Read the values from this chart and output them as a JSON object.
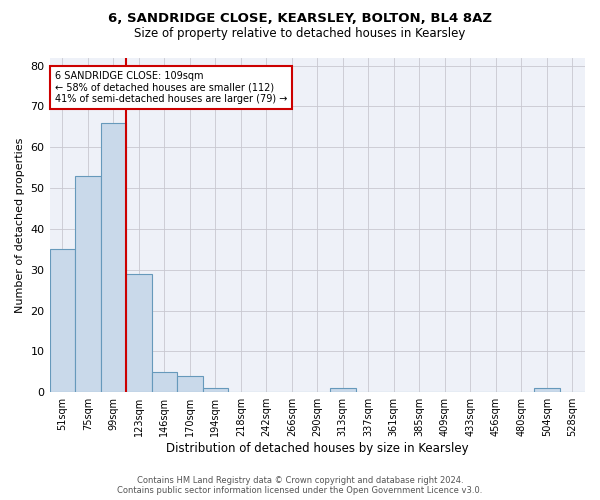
{
  "title1": "6, SANDRIDGE CLOSE, KEARSLEY, BOLTON, BL4 8AZ",
  "title2": "Size of property relative to detached houses in Kearsley",
  "xlabel": "Distribution of detached houses by size in Kearsley",
  "ylabel": "Number of detached properties",
  "footer1": "Contains HM Land Registry data © Crown copyright and database right 2024.",
  "footer2": "Contains public sector information licensed under the Open Government Licence v3.0.",
  "annotation_line1": "6 SANDRIDGE CLOSE: 109sqm",
  "annotation_line2": "← 58% of detached houses are smaller (112)",
  "annotation_line3": "41% of semi-detached houses are larger (79) →",
  "bar_labels": [
    "51sqm",
    "75sqm",
    "99sqm",
    "123sqm",
    "146sqm",
    "170sqm",
    "194sqm",
    "218sqm",
    "242sqm",
    "266sqm",
    "290sqm",
    "313sqm",
    "337sqm",
    "361sqm",
    "385sqm",
    "409sqm",
    "433sqm",
    "456sqm",
    "480sqm",
    "504sqm",
    "528sqm"
  ],
  "bar_values": [
    35,
    53,
    66,
    29,
    5,
    4,
    1,
    0,
    0,
    0,
    0,
    1,
    0,
    0,
    0,
    0,
    0,
    0,
    0,
    1,
    0
  ],
  "bar_color": "#c9d9ea",
  "bar_edge_color": "#6699bb",
  "grid_color": "#c8c8d0",
  "bg_color": "#eef1f8",
  "red_line_x": 2.5,
  "annotation_box_color": "#cc0000",
  "ylim": [
    0,
    82
  ],
  "yticks": [
    0,
    10,
    20,
    30,
    40,
    50,
    60,
    70,
    80
  ]
}
